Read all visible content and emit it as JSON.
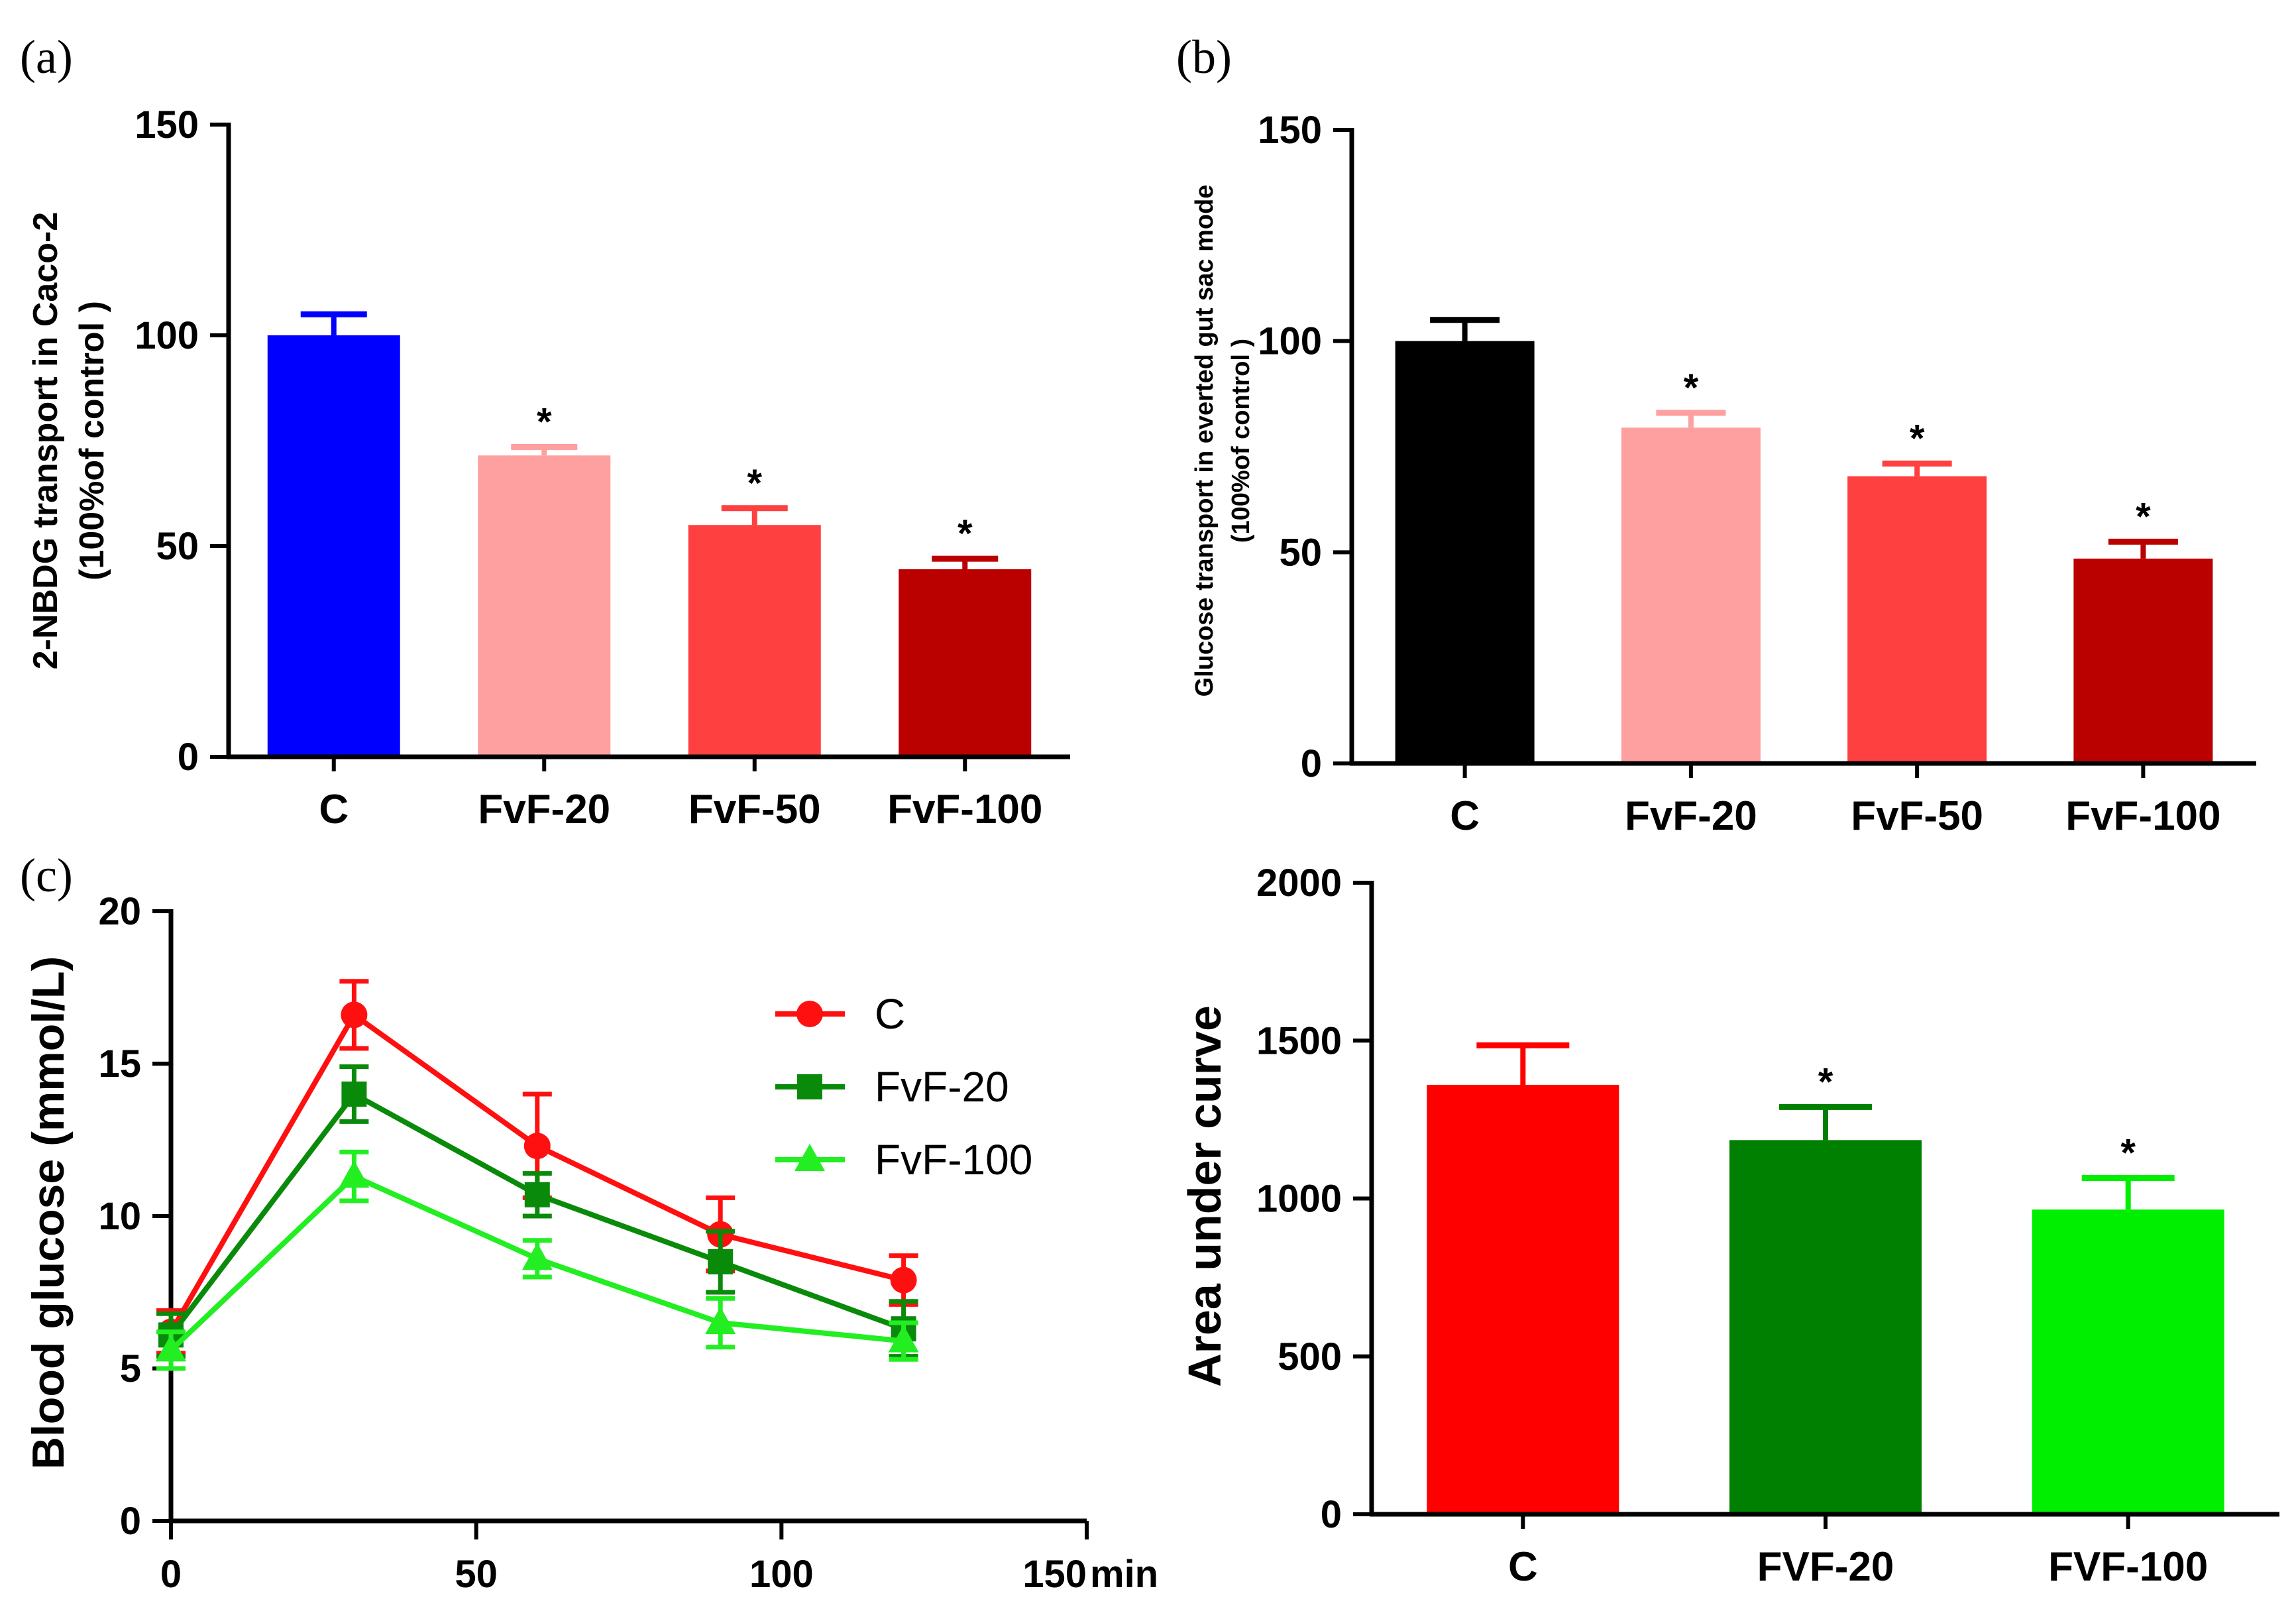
{
  "panels": {
    "a_label": "(a)",
    "b_label": "(b)",
    "c_label": "(c)"
  },
  "chart_data": [
    {
      "id": "a",
      "type": "bar",
      "title": "",
      "xlabel": "",
      "ylabel_line1": "2-NBDG transport in Caco-2",
      "ylabel_line2": "(100%of control )",
      "categories": [
        "C",
        "FvF-20",
        "FvF-50",
        "FvF-100"
      ],
      "values": [
        100,
        71.5,
        55,
        44.5
      ],
      "errors": [
        5,
        2,
        4,
        2.5
      ],
      "significant": [
        false,
        true,
        true,
        true
      ],
      "colors": [
        "#0000ff",
        "#ffa0a0",
        "#ff4040",
        "#bb0000"
      ],
      "ylim": [
        0,
        150
      ],
      "yticks": [
        0,
        50,
        100,
        150
      ],
      "significance_mark": "*"
    },
    {
      "id": "b",
      "type": "bar",
      "title": "",
      "xlabel": "",
      "ylabel_line1": "Glucose transport  in everted gut sac mode",
      "ylabel_line2": "(100%of control )",
      "categories": [
        "C",
        "FvF-20",
        "FvF-50",
        "FvF-100"
      ],
      "values": [
        100,
        79.5,
        68,
        48.5
      ],
      "errors": [
        5,
        3.5,
        3,
        4
      ],
      "significant": [
        false,
        true,
        true,
        true
      ],
      "colors": [
        "#000000",
        "#ffa0a0",
        "#ff4040",
        "#bb0000"
      ],
      "ylim": [
        0,
        150
      ],
      "yticks": [
        0,
        50,
        100,
        150
      ],
      "significance_mark": "*"
    },
    {
      "id": "c",
      "type": "line",
      "title": "",
      "xlabel": "min",
      "ylabel": "Blood glucose (mmol/L)",
      "x": [
        0,
        30,
        60,
        90,
        120
      ],
      "xlim": [
        0,
        150
      ],
      "xticks": [
        0,
        50,
        100,
        150
      ],
      "ylim": [
        0,
        20
      ],
      "yticks": [
        0,
        5,
        10,
        15,
        20
      ],
      "legend_position": "top-right",
      "series": [
        {
          "name": "C",
          "marker": "circle",
          "color": "#ff1010",
          "values": [
            6.2,
            16.6,
            12.3,
            9.4,
            7.9
          ],
          "errors": [
            0.7,
            1.1,
            1.7,
            1.2,
            0.8
          ]
        },
        {
          "name": "FvF-20",
          "marker": "square",
          "color": "#0a8a0a",
          "values": [
            6.1,
            14.0,
            10.7,
            8.5,
            6.3
          ],
          "errors": [
            0.7,
            0.9,
            0.7,
            1.0,
            0.9
          ]
        },
        {
          "name": "FvF-100",
          "marker": "triangle",
          "color": "#22ee22",
          "values": [
            5.6,
            11.3,
            8.6,
            6.5,
            5.9
          ],
          "errors": [
            0.6,
            0.8,
            0.6,
            0.8,
            0.6
          ]
        }
      ]
    },
    {
      "id": "d",
      "type": "bar",
      "title": "",
      "xlabel": "",
      "ylabel": "Area under curve",
      "categories": [
        "C",
        "FVF-20",
        "FVF-100"
      ],
      "values": [
        1360,
        1185,
        965
      ],
      "errors": [
        125,
        105,
        100
      ],
      "significant": [
        false,
        true,
        true
      ],
      "colors": [
        "#ff0000",
        "#008000",
        "#00ee00"
      ],
      "ylim": [
        0,
        2000
      ],
      "yticks": [
        0,
        500,
        1000,
        1500,
        2000
      ],
      "significance_mark": "*"
    }
  ]
}
